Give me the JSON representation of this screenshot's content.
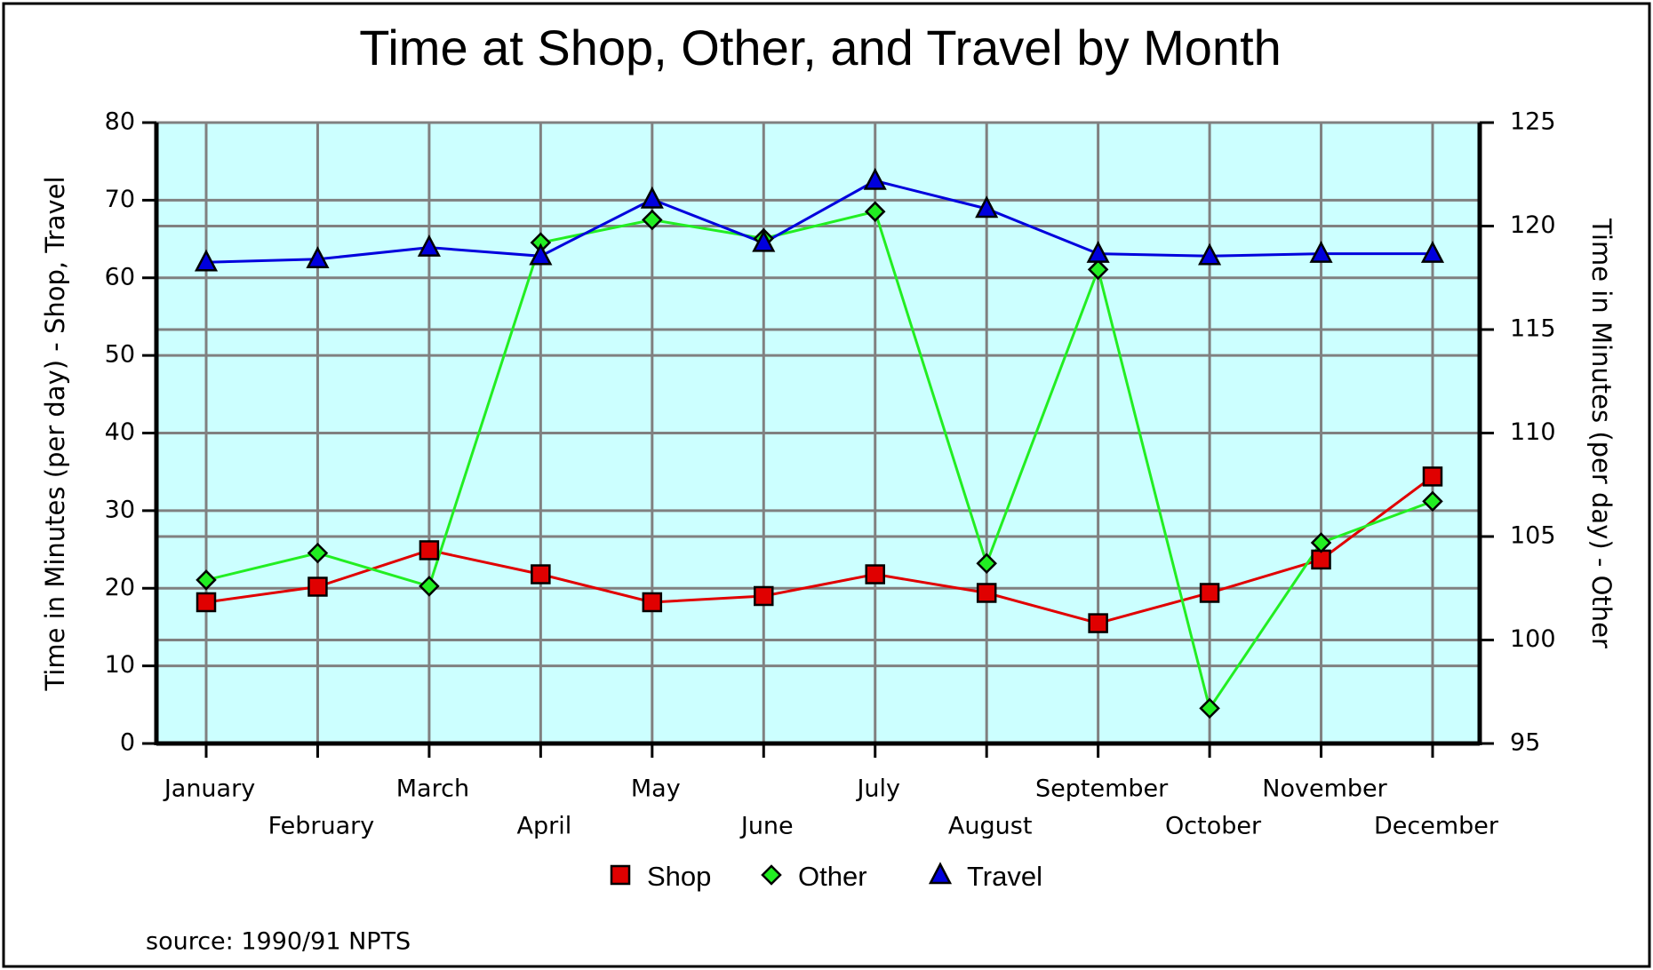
{
  "chart_data": {
    "type": "line",
    "title": "Time at Shop, Other, and Travel by Month",
    "ylabel": "Time in Minutes (per day) - Shop, Travel",
    "y2label": "Time in Minutes (per day) - Other",
    "source": "source: 1990/91 NPTS",
    "categories": [
      "January",
      "February",
      "March",
      "April",
      "May",
      "June",
      "July",
      "August",
      "September",
      "October",
      "November",
      "December"
    ],
    "series": [
      {
        "name": "Shop",
        "color": "#e00000",
        "marker": "square",
        "values": [
          18.2,
          20.2,
          24.9,
          21.8,
          18.2,
          19.0,
          21.8,
          19.4,
          15.5,
          19.4,
          23.7,
          34.4
        ]
      },
      {
        "name": "Other",
        "color": "#22ee22",
        "marker": "diamond",
        "axis": "y2",
        "values": [
          102.9,
          104.2,
          102.6,
          119.2,
          120.3,
          119.4,
          120.7,
          103.7,
          117.9,
          96.7,
          104.7,
          106.7
        ]
      },
      {
        "name": "Travel",
        "color": "#0000dd",
        "marker": "triangle",
        "values": [
          62.0,
          62.4,
          63.9,
          62.8,
          70.1,
          64.5,
          72.5,
          68.9,
          63.1,
          62.8,
          63.1,
          63.1
        ]
      }
    ],
    "ylim": [
      0,
      80
    ],
    "yticks": [
      0,
      10,
      20,
      30,
      40,
      50,
      60,
      70,
      80
    ],
    "y2lim": [
      95,
      125
    ],
    "y2ticks": [
      95,
      100,
      105,
      110,
      115,
      120,
      125
    ],
    "grid": true,
    "background": "#ccffff",
    "legend": "bottom"
  }
}
